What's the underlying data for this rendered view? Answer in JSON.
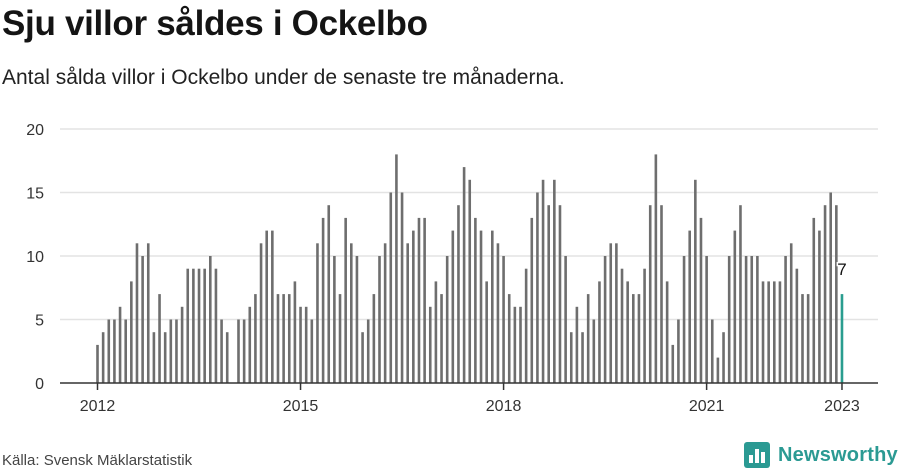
{
  "header": {
    "title": "Sju villor såldes i Ockelbo",
    "subtitle": "Antal sålda villor i Ockelbo under de senaste tre månaderna."
  },
  "footer": {
    "source": "Källa: Svensk Mäklarstatistik",
    "brand": "Newsworthy"
  },
  "colors": {
    "bar": "#6e6e6e",
    "highlight": "#2a9d8f",
    "grid": "#e3e3e3",
    "axis": "#333333",
    "brand": "#2b9a93"
  },
  "chart_data": {
    "type": "bar",
    "title": "Sju villor såldes i Ockelbo",
    "ylim": [
      0,
      20
    ],
    "yticks": [
      0,
      5,
      10,
      15,
      20
    ],
    "xtick_labels": [
      "2012",
      "2015",
      "2018",
      "2021",
      "2023"
    ],
    "grid": true,
    "highlight_label": "7",
    "start_month": "2012-01",
    "values": [
      3,
      4,
      5,
      5,
      6,
      5,
      8,
      11,
      10,
      11,
      4,
      7,
      4,
      5,
      5,
      6,
      9,
      9,
      9,
      9,
      10,
      9,
      5,
      4,
      null,
      5,
      5,
      6,
      7,
      11,
      12,
      12,
      7,
      7,
      7,
      8,
      6,
      6,
      5,
      11,
      13,
      14,
      10,
      7,
      13,
      11,
      10,
      4,
      5,
      7,
      10,
      11,
      15,
      18,
      15,
      11,
      12,
      13,
      13,
      6,
      8,
      7,
      10,
      12,
      14,
      17,
      16,
      13,
      12,
      8,
      12,
      11,
      10,
      7,
      6,
      6,
      9,
      13,
      15,
      16,
      14,
      16,
      14,
      10,
      4,
      6,
      4,
      7,
      5,
      8,
      10,
      11,
      11,
      9,
      8,
      7,
      7,
      9,
      14,
      18,
      14,
      8,
      3,
      5,
      10,
      12,
      16,
      13,
      10,
      5,
      2,
      4,
      10,
      12,
      14,
      10,
      10,
      10,
      8,
      8,
      8,
      8,
      10,
      11,
      9,
      7,
      7,
      13,
      12,
      14,
      15,
      14,
      7
    ]
  }
}
